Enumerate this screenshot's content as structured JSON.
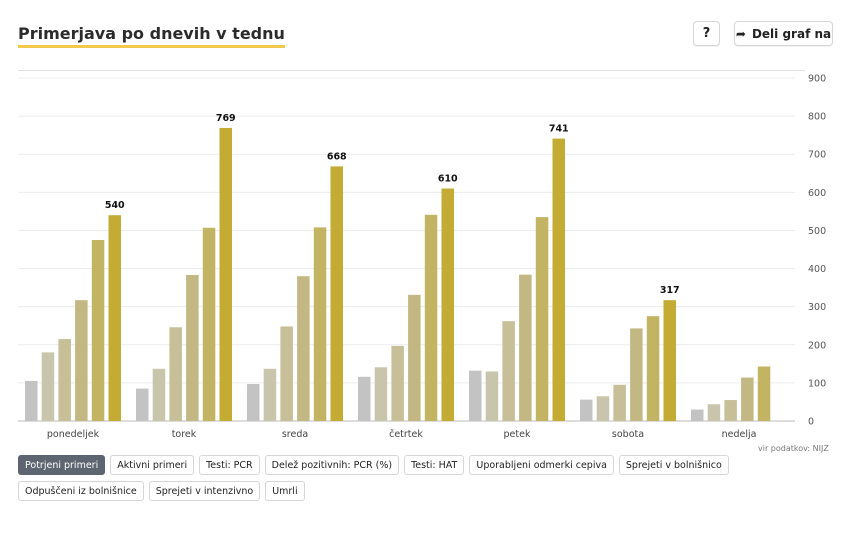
{
  "header": {
    "title": "Primerjava po dnevih v tednu",
    "help_label": "?",
    "share_label": "Deli graf na"
  },
  "source": "vir podatkov: NIJZ",
  "tabs": [
    {
      "label": "Potrjeni primeri",
      "active": true
    },
    {
      "label": "Aktivni primeri",
      "active": false
    },
    {
      "label": "Testi: PCR",
      "active": false
    },
    {
      "label": "Delež pozitivnih: PCR (%)",
      "active": false
    },
    {
      "label": "Testi: HAT",
      "active": false
    },
    {
      "label": "Uporabljeni odmerki cepiva",
      "active": false
    },
    {
      "label": "Sprejeti v bolnišnico",
      "active": false
    },
    {
      "label": "Odpuščeni iz bolnišnice",
      "active": false
    },
    {
      "label": "Sprejeti v intenzivno",
      "active": false
    },
    {
      "label": "Umrli",
      "active": false
    }
  ],
  "colors": {
    "bars": [
      "#c3c3c3",
      "#c9c4ac",
      "#c6bf98",
      "#c3b883",
      "#c3b463",
      "#c4ab33"
    ],
    "accent": "#f2c94c",
    "active_tab": "#5d6570"
  },
  "chart_data": {
    "type": "bar",
    "categories": [
      "ponedeljek",
      "torek",
      "sreda",
      "četrtek",
      "petek",
      "sobota",
      "nedelja"
    ],
    "series": [
      {
        "values": [
          105,
          85,
          97,
          116,
          132,
          56,
          30
        ]
      },
      {
        "values": [
          180,
          137,
          137,
          141,
          130,
          65,
          44
        ]
      },
      {
        "values": [
          215,
          246,
          248,
          197,
          262,
          95,
          55
        ]
      },
      {
        "values": [
          317,
          383,
          380,
          331,
          384,
          243,
          114
        ]
      },
      {
        "values": [
          475,
          507,
          508,
          541,
          535,
          275,
          143
        ]
      },
      {
        "values": [
          540,
          769,
          668,
          610,
          741,
          317,
          null
        ]
      }
    ],
    "value_labels": [
      "540",
      "769",
      "668",
      "610",
      "741",
      "317",
      ""
    ],
    "y_ticks": [
      0,
      100,
      200,
      300,
      400,
      500,
      600,
      700,
      800,
      900
    ],
    "ylim": [
      0,
      900
    ],
    "y_axis_side": "right",
    "grid": true,
    "legend": "none"
  }
}
